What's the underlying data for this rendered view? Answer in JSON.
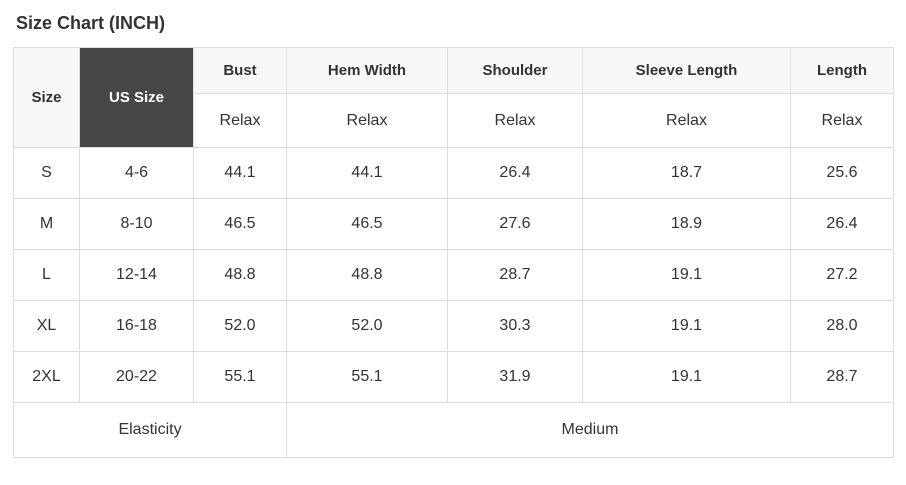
{
  "page": {
    "title": "Size Chart (INCH)"
  },
  "table": {
    "header": {
      "size_label": "Size",
      "us_size_label": "US Size",
      "measure_columns": [
        "Bust",
        "Hem Width",
        "Shoulder",
        "Sleeve Length",
        "Length"
      ],
      "fit_row": [
        "Relax",
        "Relax",
        "Relax",
        "Relax",
        "Relax"
      ]
    },
    "rows": [
      {
        "size": "S",
        "us_size": "4-6",
        "values": [
          "44.1",
          "44.1",
          "26.4",
          "18.7",
          "25.6"
        ]
      },
      {
        "size": "M",
        "us_size": "8-10",
        "values": [
          "46.5",
          "46.5",
          "27.6",
          "18.9",
          "26.4"
        ]
      },
      {
        "size": "L",
        "us_size": "12-14",
        "values": [
          "48.8",
          "48.8",
          "28.7",
          "19.1",
          "27.2"
        ]
      },
      {
        "size": "XL",
        "us_size": "16-18",
        "values": [
          "52.0",
          "52.0",
          "30.3",
          "19.1",
          "28.0"
        ]
      },
      {
        "size": "2XL",
        "us_size": "20-22",
        "values": [
          "55.1",
          "55.1",
          "31.9",
          "19.1",
          "28.7"
        ]
      }
    ],
    "footer": {
      "elasticity_label": "Elasticity",
      "elasticity_value": "Medium"
    }
  },
  "colors": {
    "us_size_header_bg": "#474747",
    "us_size_header_text": "#ffffff",
    "header_bg": "#f8f8f8",
    "border": "#dddddd",
    "text": "#333333"
  }
}
